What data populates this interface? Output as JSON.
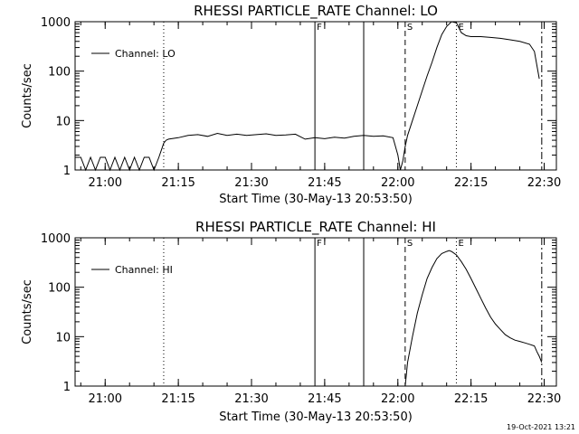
{
  "footer": {
    "date_stamp": "19-Oct-2021 13:21"
  },
  "chart_data": [
    {
      "type": "line",
      "title": "RHESSI PARTICLE_RATE Channel: LO",
      "xlabel": "Start Time (30-May-13 20:53:50)",
      "ylabel": "Counts/sec",
      "yscale": "log",
      "ylim": [
        1,
        1000
      ],
      "xlim": [
        "20:53:50",
        "22:32:30"
      ],
      "x_ticks": [
        "21:00",
        "21:15",
        "21:30",
        "21:45",
        "22:00",
        "22:15",
        "22:30"
      ],
      "y_ticks": [
        "1",
        "10",
        "100",
        "1000"
      ],
      "legend": {
        "label": "Channel: LO",
        "placement": "top-left"
      },
      "markers": [
        {
          "time": "21:12:00",
          "style": "dotted",
          "label": ""
        },
        {
          "time": "21:43:00",
          "style": "solid",
          "label": "F"
        },
        {
          "time": "21:53:00",
          "style": "solid",
          "label": ""
        },
        {
          "time": "22:01:30",
          "style": "dashed",
          "label": "S"
        },
        {
          "time": "22:12:00",
          "style": "dotted",
          "label": "E"
        },
        {
          "time": "22:29:30",
          "style": "dashdot",
          "label": ""
        }
      ],
      "series": [
        {
          "x": [
            "20:53:50",
            "20:55:00",
            "20:56:00",
            "20:57:00",
            "20:58:00",
            "20:59:00",
            "21:00:00",
            "21:01:00",
            "21:02:00",
            "21:03:00",
            "21:04:00",
            "21:05:00",
            "21:06:00",
            "21:07:00",
            "21:08:00",
            "21:09:00",
            "21:10:00",
            "21:11:00",
            "21:12:00",
            "21:12:30",
            "21:13:00",
            "21:15:00",
            "21:17:00",
            "21:19:00",
            "21:21:00",
            "21:23:00",
            "21:25:00",
            "21:27:00",
            "21:29:00",
            "21:31:00",
            "21:33:00",
            "21:35:00",
            "21:37:00",
            "21:39:00",
            "21:41:00",
            "21:43:00",
            "21:45:00",
            "21:47:00",
            "21:49:00",
            "21:51:00",
            "21:53:00",
            "21:55:00",
            "21:57:00",
            "21:59:00",
            "22:00:00",
            "22:00:30",
            "22:01:00",
            "22:01:30",
            "22:02:00",
            "22:03:00",
            "22:04:00",
            "22:05:00",
            "22:06:00",
            "22:07:00",
            "22:08:00",
            "22:09:00",
            "22:10:00",
            "22:11:00",
            "22:12:00",
            "22:13:00",
            "22:14:00",
            "22:15:00",
            "22:17:00",
            "22:19:00",
            "22:21:00",
            "22:23:00",
            "22:25:00",
            "22:27:00",
            "22:28:00",
            "22:29:00"
          ],
          "y": [
            1.8,
            1.8,
            1,
            1.8,
            1,
            1.8,
            1.8,
            1,
            1.8,
            1,
            1.8,
            1,
            1.8,
            1,
            1.8,
            1.8,
            1,
            1.8,
            3.5,
            4,
            4.2,
            4.5,
            5,
            5.2,
            4.8,
            5.5,
            5,
            5.3,
            5,
            5.2,
            5.4,
            5,
            5.1,
            5.3,
            4.2,
            4.5,
            4.3,
            4.6,
            4.4,
            4.8,
            5,
            4.8,
            4.9,
            4.5,
            2,
            1,
            1.5,
            3,
            5,
            10,
            20,
            40,
            80,
            150,
            300,
            550,
            800,
            1000,
            950,
            600,
            520,
            500,
            500,
            480,
            460,
            430,
            400,
            350,
            250,
            70
          ]
        }
      ]
    },
    {
      "type": "line",
      "title": "RHESSI PARTICLE_RATE Channel: HI",
      "xlabel": "Start Time (30-May-13 20:53:50)",
      "ylabel": "Counts/sec",
      "yscale": "log",
      "ylim": [
        1,
        1000
      ],
      "xlim": [
        "20:53:50",
        "22:32:30"
      ],
      "x_ticks": [
        "21:00",
        "21:15",
        "21:30",
        "21:45",
        "22:00",
        "22:15",
        "22:30"
      ],
      "y_ticks": [
        "1",
        "10",
        "100",
        "1000"
      ],
      "legend": {
        "label": "Channel: HI",
        "placement": "top-left"
      },
      "markers": [
        {
          "time": "21:12:00",
          "style": "dotted",
          "label": ""
        },
        {
          "time": "21:43:00",
          "style": "solid",
          "label": "F"
        },
        {
          "time": "21:53:00",
          "style": "solid",
          "label": ""
        },
        {
          "time": "22:01:30",
          "style": "dashed",
          "label": "S"
        },
        {
          "time": "22:12:00",
          "style": "dotted",
          "label": "E"
        },
        {
          "time": "22:29:30",
          "style": "dashdot",
          "label": ""
        }
      ],
      "series": [
        {
          "x": [
            "22:01:30",
            "22:02:00",
            "22:03:00",
            "22:04:00",
            "22:05:00",
            "22:06:00",
            "22:07:00",
            "22:08:00",
            "22:09:00",
            "22:10:00",
            "22:10:30",
            "22:11:00",
            "22:12:00",
            "22:13:00",
            "22:14:00",
            "22:15:00",
            "22:16:00",
            "22:17:00",
            "22:18:00",
            "22:19:00",
            "22:20:00",
            "22:21:00",
            "22:22:00",
            "22:23:00",
            "22:24:00",
            "22:25:00",
            "22:26:00",
            "22:27:00",
            "22:28:00",
            "22:28:30",
            "22:29:00",
            "22:29:30"
          ],
          "y": [
            1,
            3,
            10,
            30,
            70,
            150,
            250,
            380,
            480,
            530,
            550,
            530,
            450,
            330,
            230,
            150,
            95,
            60,
            38,
            25,
            18,
            14,
            11,
            9.5,
            8.5,
            8,
            7.5,
            7,
            6.5,
            5,
            4,
            3
          ]
        }
      ]
    }
  ]
}
